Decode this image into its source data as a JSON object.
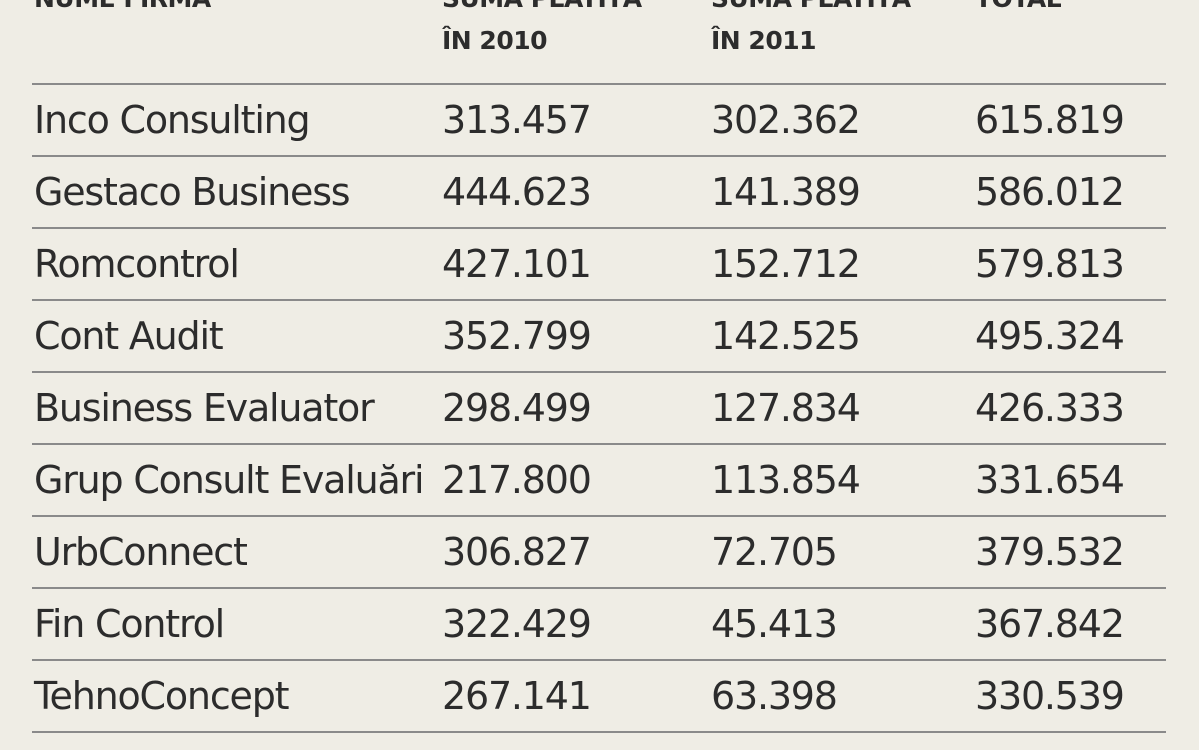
{
  "table": {
    "headers": [
      {
        "line1": "NUME FIRMA",
        "line2": ""
      },
      {
        "line1": "SUMA PLATITĂ",
        "line2": "ÎN 2010"
      },
      {
        "line1": "SUMA PLATITĂ",
        "line2": "ÎN 2011"
      },
      {
        "line1": "TOTAL",
        "line2": ""
      }
    ],
    "rows": [
      [
        "Inco Consulting",
        "313.457",
        "302.362",
        "615.819"
      ],
      [
        "Gestaco Business",
        "444.623",
        "141.389",
        "586.012"
      ],
      [
        "Romcontrol",
        "427.101",
        "152.712",
        "579.813"
      ],
      [
        "Cont Audit",
        "352.799",
        "142.525",
        "495.324"
      ],
      [
        "Business Evaluator",
        "298.499",
        "127.834",
        "426.333"
      ],
      [
        "Grup Consult Evaluări",
        "217.800",
        "113.854",
        "331.654"
      ],
      [
        "UrbConnect",
        "306.827",
        "72.705",
        "379.532"
      ],
      [
        "Fin Control",
        "322.429",
        "45.413",
        "367.842"
      ],
      [
        "TehnoConcept",
        "267.141",
        "63.398",
        "330.539"
      ]
    ]
  }
}
